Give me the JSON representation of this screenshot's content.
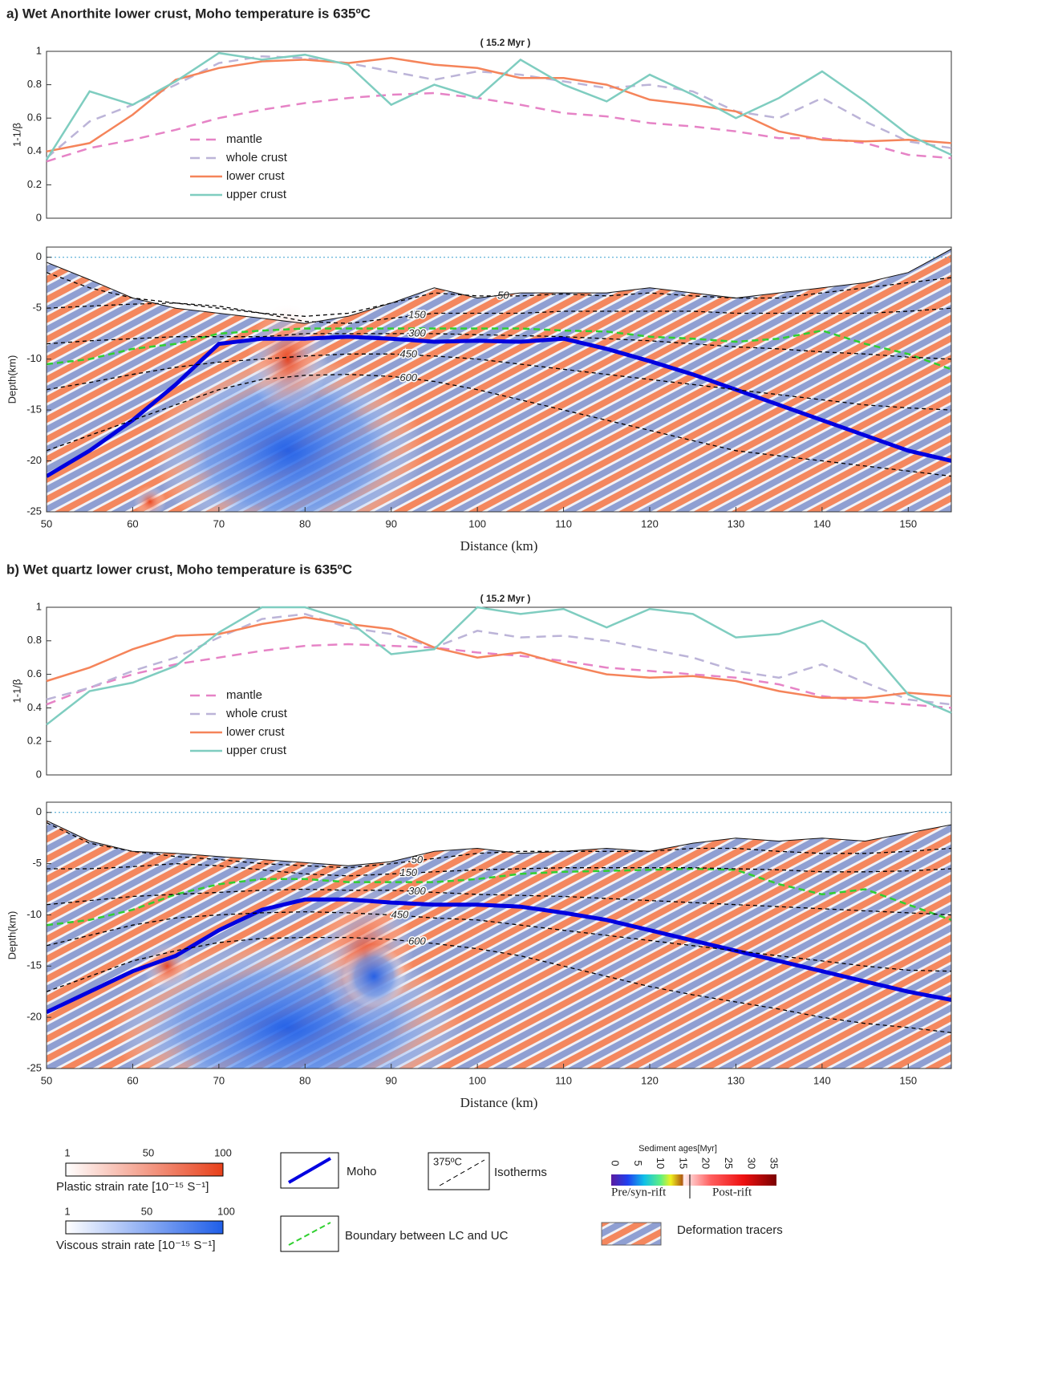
{
  "chart_data": [
    {
      "type": "line",
      "title": "a) Wet Anorthite lower crust, Moho temperature is 635ºC",
      "subtitle": "(    15.2 Myr )",
      "ylabel": "1-1/β",
      "xlim": [
        50,
        155
      ],
      "ylim": [
        0,
        1
      ],
      "yticks": [
        0,
        0.2,
        0.4,
        0.6,
        0.8,
        1
      ],
      "x": [
        50,
        55,
        60,
        65,
        70,
        75,
        80,
        85,
        90,
        95,
        100,
        105,
        110,
        115,
        120,
        125,
        130,
        135,
        140,
        145,
        150,
        155
      ],
      "series": [
        {
          "name": "mantle",
          "color": "#e683c6",
          "dashed": true,
          "values": [
            0.34,
            0.42,
            0.47,
            0.53,
            0.6,
            0.65,
            0.69,
            0.72,
            0.74,
            0.75,
            0.72,
            0.68,
            0.63,
            0.61,
            0.57,
            0.55,
            0.52,
            0.48,
            0.48,
            0.45,
            0.38,
            0.36
          ]
        },
        {
          "name": "whole crust",
          "color": "#bcb4d8",
          "dashed": true,
          "values": [
            0.36,
            0.58,
            0.68,
            0.8,
            0.93,
            0.97,
            0.96,
            0.93,
            0.88,
            0.83,
            0.88,
            0.86,
            0.82,
            0.78,
            0.8,
            0.76,
            0.64,
            0.6,
            0.72,
            0.58,
            0.46,
            0.42
          ]
        },
        {
          "name": "lower crust",
          "color": "#f5845a",
          "dashed": false,
          "values": [
            0.4,
            0.45,
            0.62,
            0.83,
            0.9,
            0.94,
            0.95,
            0.93,
            0.96,
            0.92,
            0.9,
            0.84,
            0.84,
            0.8,
            0.71,
            0.68,
            0.64,
            0.52,
            0.47,
            0.46,
            0.47,
            0.45
          ]
        },
        {
          "name": "upper crust",
          "color": "#7fcdc0",
          "dashed": false,
          "values": [
            0.35,
            0.76,
            0.68,
            0.82,
            0.99,
            0.95,
            0.98,
            0.92,
            0.68,
            0.8,
            0.72,
            0.95,
            0.8,
            0.7,
            0.86,
            0.74,
            0.6,
            0.72,
            0.88,
            0.7,
            0.5,
            0.38
          ]
        }
      ]
    },
    {
      "type": "section",
      "xlabel": "Distance (km)",
      "ylabel": "Depth(km)",
      "xlim": [
        50,
        155
      ],
      "ylim": [
        -25,
        1
      ],
      "xticks": [
        50,
        60,
        70,
        80,
        90,
        100,
        110,
        120,
        130,
        140,
        150
      ],
      "yticks": [
        0,
        -5,
        -10,
        -15,
        -20,
        -25
      ],
      "x": [
        50,
        55,
        60,
        65,
        70,
        75,
        80,
        85,
        90,
        95,
        100,
        105,
        110,
        115,
        120,
        125,
        130,
        135,
        140,
        145,
        150,
        155
      ],
      "topography": [
        -0.5,
        -2.2,
        -4,
        -5,
        -5.5,
        -6,
        -6.5,
        -5.8,
        -4.5,
        -3,
        -4,
        -3.5,
        -3.5,
        -3.5,
        -3,
        -3.5,
        -4,
        -3.5,
        -3,
        -2.5,
        -1.5,
        0.8
      ],
      "moho": [
        -21.5,
        -19,
        -16,
        -12.5,
        -8.5,
        -8,
        -8,
        -7.8,
        -8,
        -8.3,
        -8.2,
        -8.3,
        -8,
        -9,
        -10.2,
        -11.5,
        -13,
        -14.5,
        -16,
        -17.5,
        -19,
        -20
      ],
      "boundary": [
        -10.5,
        -10,
        -9,
        -8.5,
        -7.5,
        -7.2,
        -7,
        -7,
        -7,
        -7,
        -7,
        -7,
        -7.2,
        -7.3,
        -7.8,
        -8,
        -8.3,
        -8,
        -7.2,
        -8.5,
        -9.5,
        -11
      ],
      "isotherms": [
        {
          "name": "50",
          "values": [
            -1.5,
            -3,
            -4,
            -4.5,
            -5,
            -5.5,
            -5.8,
            -5.5,
            -4.5,
            -3.5,
            -3.8,
            -3.8,
            -3.6,
            -3.8,
            -3.5,
            -3.8,
            -4,
            -4,
            -3.5,
            -3,
            -2.5,
            -2
          ]
        },
        {
          "name": "150",
          "values": [
            -5,
            -4.8,
            -4.6,
            -4.5,
            -4.8,
            -5.5,
            -6.3,
            -6.5,
            -6,
            -5.5,
            -5.5,
            -5.5,
            -5.3,
            -5.3,
            -5.3,
            -5.3,
            -5.5,
            -5.5,
            -5.5,
            -5.5,
            -5.3,
            -5
          ]
        },
        {
          "name": "300",
          "values": [
            -8.5,
            -8.2,
            -8,
            -7.8,
            -7.8,
            -7.8,
            -7.5,
            -7.5,
            -7.5,
            -7.5,
            -7.6,
            -7.7,
            -7.8,
            -8,
            -8.2,
            -8.5,
            -8.8,
            -9,
            -9.3,
            -9.5,
            -9.8,
            -10
          ]
        },
        {
          "name": "450",
          "values": [
            -13,
            -12.3,
            -11.5,
            -10.8,
            -10.3,
            -10,
            -9.7,
            -9.5,
            -9.5,
            -9.7,
            -10,
            -10.5,
            -11,
            -11.5,
            -12,
            -12.5,
            -13,
            -13.5,
            -14,
            -14.5,
            -14.8,
            -15
          ]
        },
        {
          "name": "600",
          "values": [
            -19,
            -17.5,
            -16,
            -14.5,
            -13,
            -12,
            -11.6,
            -11.5,
            -11.7,
            -12.2,
            -13,
            -14,
            -15,
            -16,
            -17,
            -18,
            -19,
            -19.5,
            -20,
            -20.5,
            -21,
            -21.5
          ]
        }
      ]
    },
    {
      "type": "line",
      "title": "b) Wet quartz lower crust, Moho temperature is 635ºC",
      "subtitle": "(    15.2 Myr )",
      "ylabel": "1-1/β",
      "xlim": [
        50,
        155
      ],
      "ylim": [
        0,
        1
      ],
      "yticks": [
        0,
        0.2,
        0.4,
        0.6,
        0.8,
        1
      ],
      "x": [
        50,
        55,
        60,
        65,
        70,
        75,
        80,
        85,
        90,
        95,
        100,
        105,
        110,
        115,
        120,
        125,
        130,
        135,
        140,
        145,
        150,
        155
      ],
      "series": [
        {
          "name": "mantle",
          "color": "#e683c6",
          "dashed": true,
          "values": [
            0.42,
            0.52,
            0.6,
            0.66,
            0.7,
            0.74,
            0.77,
            0.78,
            0.77,
            0.76,
            0.73,
            0.71,
            0.68,
            0.64,
            0.62,
            0.6,
            0.58,
            0.54,
            0.47,
            0.44,
            0.42,
            0.4
          ]
        },
        {
          "name": "whole crust",
          "color": "#bcb4d8",
          "dashed": true,
          "values": [
            0.45,
            0.52,
            0.62,
            0.7,
            0.82,
            0.93,
            0.96,
            0.88,
            0.84,
            0.76,
            0.86,
            0.82,
            0.83,
            0.8,
            0.75,
            0.7,
            0.62,
            0.58,
            0.66,
            0.55,
            0.45,
            0.42
          ]
        },
        {
          "name": "lower crust",
          "color": "#f5845a",
          "dashed": false,
          "values": [
            0.56,
            0.64,
            0.75,
            0.83,
            0.84,
            0.9,
            0.94,
            0.9,
            0.87,
            0.76,
            0.7,
            0.73,
            0.66,
            0.6,
            0.58,
            0.59,
            0.56,
            0.5,
            0.46,
            0.46,
            0.49,
            0.47
          ]
        },
        {
          "name": "upper crust",
          "color": "#7fcdc0",
          "dashed": false,
          "values": [
            0.3,
            0.5,
            0.55,
            0.65,
            0.85,
            1.0,
            1.0,
            0.92,
            0.72,
            0.75,
            1.0,
            0.96,
            0.99,
            0.88,
            0.99,
            0.96,
            0.82,
            0.84,
            0.92,
            0.78,
            0.48,
            0.37
          ]
        }
      ]
    },
    {
      "type": "section",
      "xlabel": "Distance (km)",
      "ylabel": "Depth(km)",
      "xlim": [
        50,
        155
      ],
      "ylim": [
        -25,
        1
      ],
      "xticks": [
        50,
        60,
        70,
        80,
        90,
        100,
        110,
        120,
        130,
        140,
        150
      ],
      "yticks": [
        0,
        -5,
        -10,
        -15,
        -20,
        -25
      ],
      "x": [
        50,
        55,
        60,
        65,
        70,
        75,
        80,
        85,
        90,
        95,
        100,
        105,
        110,
        115,
        120,
        125,
        130,
        135,
        140,
        145,
        150,
        155
      ],
      "topography": [
        -0.8,
        -2.8,
        -3.8,
        -4,
        -4.3,
        -4.6,
        -4.9,
        -5.2,
        -4.8,
        -3.8,
        -3.5,
        -4,
        -3.8,
        -3.5,
        -3.8,
        -3,
        -2.5,
        -2.8,
        -2.5,
        -2.8,
        -2,
        -1.2
      ],
      "moho": [
        -19.5,
        -17.5,
        -15.5,
        -14,
        -11.5,
        -9.5,
        -8.5,
        -8.5,
        -8.8,
        -9,
        -9,
        -9.2,
        -9.8,
        -10.5,
        -11.5,
        -12.5,
        -13.5,
        -14.5,
        -15.5,
        -16.5,
        -17.5,
        -18.3
      ],
      "boundary": [
        -11,
        -10.5,
        -9.5,
        -8,
        -7,
        -6.5,
        -6.5,
        -6.8,
        -6.8,
        -6.8,
        -6.5,
        -6,
        -5.8,
        -5.7,
        -5.6,
        -5.5,
        -5.6,
        -7,
        -8,
        -7.5,
        -9,
        -10.5
      ],
      "isotherms": [
        {
          "name": "50",
          "values": [
            -1,
            -3,
            -3.8,
            -4.3,
            -4.6,
            -5,
            -5.2,
            -5.4,
            -5,
            -4.5,
            -4,
            -3.8,
            -3.8,
            -3.8,
            -3.8,
            -3.5,
            -3.5,
            -3.8,
            -4,
            -4,
            -3.8,
            -3.5
          ]
        },
        {
          "name": "150",
          "values": [
            -5.5,
            -5.5,
            -5.3,
            -5,
            -5.2,
            -5.6,
            -6,
            -6.2,
            -6,
            -5.8,
            -5.6,
            -5.5,
            -5.4,
            -5.4,
            -5.4,
            -5.4,
            -5.5,
            -5.6,
            -5.8,
            -5.8,
            -5.7,
            -5.5
          ]
        },
        {
          "name": "300",
          "values": [
            -9,
            -8.6,
            -8.2,
            -8,
            -7.8,
            -7.6,
            -7.5,
            -7.6,
            -7.6,
            -7.8,
            -8,
            -8.1,
            -8.2,
            -8.4,
            -8.6,
            -8.8,
            -9,
            -9.2,
            -9.4,
            -9.6,
            -9.8,
            -10
          ]
        },
        {
          "name": "450",
          "values": [
            -13,
            -12,
            -11,
            -10.3,
            -10,
            -9.8,
            -9.7,
            -9.8,
            -10,
            -10.3,
            -10.5,
            -11,
            -11.5,
            -12,
            -12.5,
            -13,
            -13.5,
            -14,
            -14.5,
            -15,
            -15.4,
            -15.5
          ]
        },
        {
          "name": "600",
          "values": [
            -17.5,
            -16,
            -14.5,
            -13.5,
            -12.7,
            -12.3,
            -12.2,
            -12.2,
            -12.4,
            -12.8,
            -13.3,
            -14,
            -15,
            -16,
            -17,
            -17.8,
            -18.5,
            -19.2,
            -20,
            -20.6,
            -21,
            -21.5
          ]
        }
      ]
    }
  ],
  "legend": {
    "plastic": {
      "ticks": [
        1,
        50,
        100
      ],
      "label": "Plastic strain rate [10⁻¹⁵ S⁻¹]"
    },
    "viscous": {
      "ticks": [
        1,
        50,
        100
      ],
      "label": "Viscous strain rate [10⁻¹⁵ S⁻¹]"
    },
    "moho": "Moho",
    "isotherms": "Isotherms",
    "isotherm_example": "375ºC",
    "boundary": "Boundary between LC and UC",
    "sediment": {
      "title": "Sediment ages[Myr]",
      "ticks": [
        0,
        5,
        10,
        15,
        20,
        25,
        30,
        35
      ],
      "pre": "Pre/syn-rift",
      "post": "Post-rift"
    },
    "tracers": "Deformation tracers"
  }
}
